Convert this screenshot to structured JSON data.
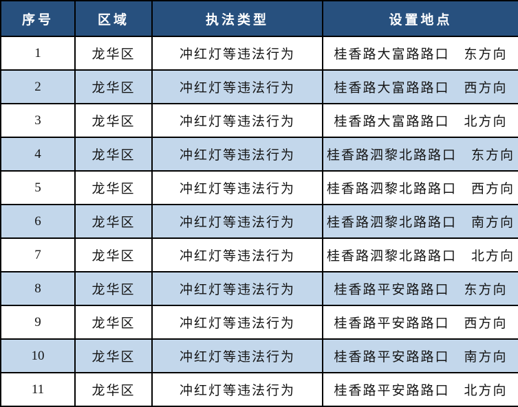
{
  "colors": {
    "header_bg": "#27507E",
    "header_text": "#FFFFFF",
    "row_bg": "#FFFFFF",
    "row_alt_bg": "#C3D7EB",
    "border": "#000000",
    "body_text": "#141414"
  },
  "table": {
    "columns": [
      {
        "label": "序号"
      },
      {
        "label": "区域"
      },
      {
        "label": "执法类型"
      },
      {
        "label": "设置地点"
      }
    ],
    "rows": [
      [
        "1",
        "龙华区",
        "冲红灯等违法行为",
        "桂香路大富路路口　东方向"
      ],
      [
        "2",
        "龙华区",
        "冲红灯等违法行为",
        "桂香路大富路路口　西方向"
      ],
      [
        "3",
        "龙华区",
        "冲红灯等违法行为",
        "桂香路大富路路口　北方向"
      ],
      [
        "4",
        "龙华区",
        "冲红灯等违法行为",
        "桂香路泗黎北路路口　东方向"
      ],
      [
        "5",
        "龙华区",
        "冲红灯等违法行为",
        "桂香路泗黎北路路口　西方向"
      ],
      [
        "6",
        "龙华区",
        "冲红灯等违法行为",
        "桂香路泗黎北路路口　南方向"
      ],
      [
        "7",
        "龙华区",
        "冲红灯等违法行为",
        "桂香路泗黎北路路口　北方向"
      ],
      [
        "8",
        "龙华区",
        "冲红灯等违法行为",
        "桂香路平安路路口　东方向"
      ],
      [
        "9",
        "龙华区",
        "冲红灯等违法行为",
        "桂香路平安路路口　西方向"
      ],
      [
        "10",
        "龙华区",
        "冲红灯等违法行为",
        "桂香路平安路路口　南方向"
      ],
      [
        "11",
        "龙华区",
        "冲红灯等违法行为",
        "桂香路平安路路口　北方向"
      ]
    ]
  }
}
